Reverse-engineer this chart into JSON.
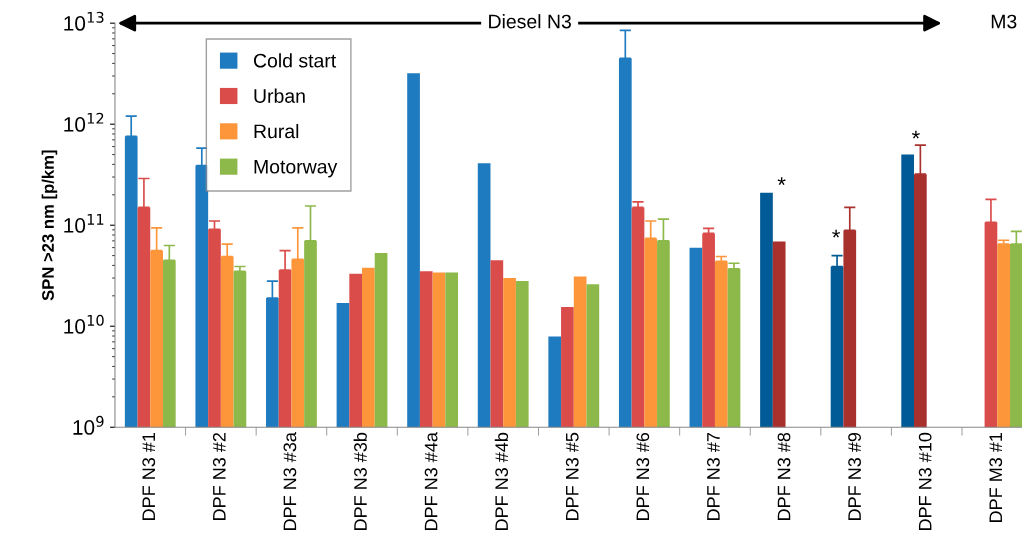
{
  "chart_data": {
    "type": "bar",
    "categories": [
      "DPF N3 #1",
      "DPF N3 #2",
      "DPF N3 #3a",
      "DPF N3 #3b",
      "DPF N3 #4a",
      "DPF N3 #4b",
      "DPF N3 #5",
      "DPF N3 #6",
      "DPF N3 #7",
      "DPF N3 #8",
      "DPF N3 #9",
      "DPF N3 #10",
      "DPF M3 #1"
    ],
    "ylabel": "SPN >23 nm [p/km]",
    "log": "y",
    "ylim": [
      1000000000.0,
      10000000000000.0
    ],
    "yticks": [
      {
        "value": 1000000000.0,
        "label": "10$^{9}$"
      },
      {
        "value": 10000000000.0,
        "label": "10$^{10}$"
      },
      {
        "value": 100000000000.0,
        "label": "10$^{11}$"
      },
      {
        "value": 1000000000000.0,
        "label": "10$^{12}$"
      },
      {
        "value": 10000000000000.0,
        "label": "10$^{13}$"
      }
    ],
    "grid": false,
    "legend": "top left",
    "series": [
      {
        "name": "Cold start",
        "color": "#1f7bbf",
        "colors": [
          "#1f7bbf",
          "#1f7bbf",
          "#1f7bbf",
          "#1f7bbf",
          "#1f7bbf",
          "#1f7bbf",
          "#1f7bbf",
          "#1f7bbf",
          "#1f7bbf",
          "#005b96",
          "#005b96",
          "#005b96",
          "#1f7bbf"
        ],
        "values": [
          760000000000.0,
          390000000000.0,
          19000000000.0,
          17000000000.0,
          3200000000000.0,
          410000000000.0,
          7900000000.0,
          4500000000000.0,
          60000000000.0,
          210000000000.0,
          39000000000.0,
          500000000000.0,
          null
        ],
        "errors": [
          [
            760000000000.0,
            1200000000000.0
          ],
          [
            390000000000.0,
            580000000000.0
          ],
          [
            19000000000.0,
            28000000000.0
          ],
          null,
          null,
          null,
          null,
          [
            4500000000000.0,
            8500000000000.0
          ],
          null,
          null,
          [
            39000000000.0,
            50000000000.0
          ],
          null,
          null
        ]
      },
      {
        "name": "Urban",
        "color": "#d94c4a",
        "colors": [
          "#d94c4a",
          "#d94c4a",
          "#d94c4a",
          "#d94c4a",
          "#d94c4a",
          "#d94c4a",
          "#d94c4a",
          "#d94c4a",
          "#d94c4a",
          "#a8312e",
          "#a8312e",
          "#a8312e",
          "#d94c4a"
        ],
        "values": [
          150000000000.0,
          91000000000.0,
          36000000000.0,
          33000000000.0,
          35000000000.0,
          45000000000.0,
          15500000000.0,
          150000000000.0,
          83000000000.0,
          69000000000.0,
          89000000000.0,
          320000000000.0,
          107000000000.0
        ],
        "errors": [
          [
            150000000000.0,
            290000000000.0
          ],
          [
            91000000000.0,
            110000000000.0
          ],
          [
            36000000000.0,
            56000000000.0
          ],
          null,
          null,
          null,
          null,
          [
            150000000000.0,
            170000000000.0
          ],
          [
            83000000000.0,
            93000000000.0
          ],
          null,
          [
            89000000000.0,
            150000000000.0
          ],
          [
            320000000000.0,
            620000000000.0
          ],
          [
            107000000000.0,
            180000000000.0
          ]
        ]
      },
      {
        "name": "Rural",
        "color": "#fd953b",
        "values": [
          56000000000.0,
          49000000000.0,
          46000000000.0,
          38000000000.0,
          34000000000.0,
          30000000000.0,
          31000000000.0,
          74000000000.0,
          44000000000.0,
          null,
          null,
          null,
          65000000000.0
        ],
        "errors": [
          [
            56000000000.0,
            94000000000.0
          ],
          [
            49000000000.0,
            65000000000.0
          ],
          [
            46000000000.0,
            94000000000.0
          ],
          null,
          null,
          null,
          null,
          [
            74000000000.0,
            110000000000.0
          ],
          [
            44000000000.0,
            49000000000.0
          ],
          null,
          null,
          null,
          [
            65000000000.0,
            71000000000.0
          ]
        ]
      },
      {
        "name": "Motorway",
        "color": "#8db84a",
        "values": [
          45000000000.0,
          35000000000.0,
          70000000000.0,
          53000000000.0,
          34000000000.0,
          28000000000.0,
          26000000000.0,
          70000000000.0,
          37000000000.0,
          null,
          null,
          null,
          65000000000.0
        ],
        "errors": [
          [
            45000000000.0,
            63000000000.0
          ],
          [
            35000000000.0,
            39000000000.0
          ],
          [
            70000000000.0,
            155000000000.0
          ],
          null,
          null,
          null,
          null,
          [
            70000000000.0,
            115000000000.0
          ],
          [
            37000000000.0,
            42000000000.0
          ],
          null,
          null,
          null,
          [
            65000000000.0,
            87000000000.0
          ]
        ]
      }
    ],
    "annotations": [
      "Diesel N3",
      "M3",
      "*",
      "*",
      "*"
    ]
  }
}
